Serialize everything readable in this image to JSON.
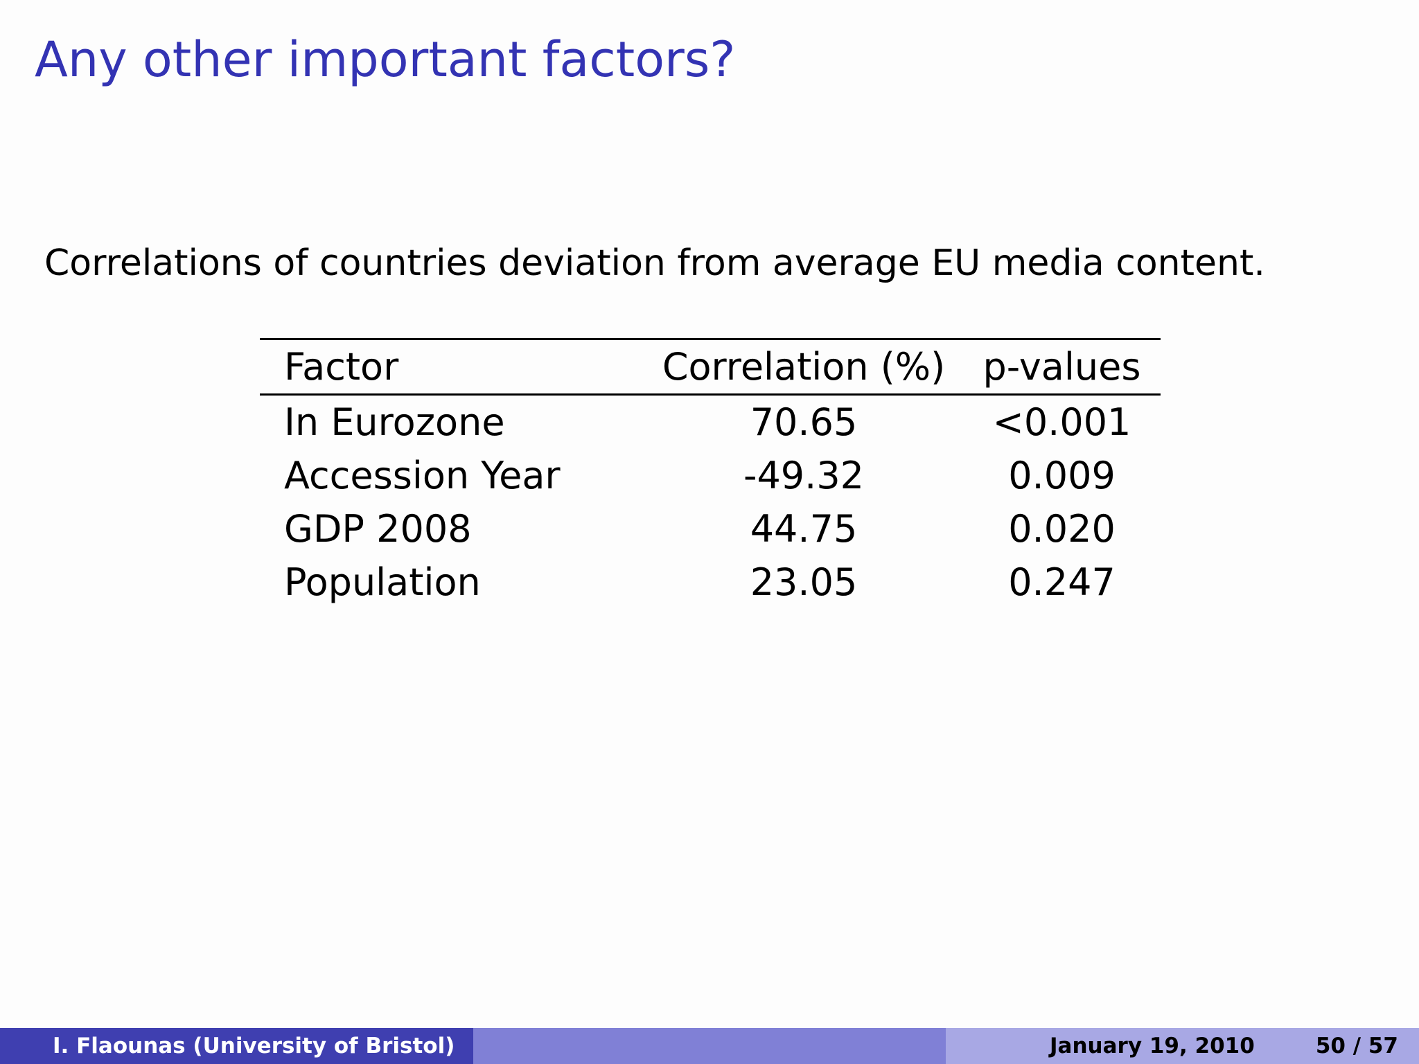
{
  "slide": {
    "title": "Any other important factors?",
    "subtitle": "Correlations of countries deviation from average EU media content."
  },
  "table": {
    "headers": [
      "Factor",
      "Correlation (%)",
      "p-values"
    ],
    "rows": [
      [
        "In Eurozone",
        "70.65",
        "<0.001"
      ],
      [
        "Accession Year",
        "-49.32",
        "0.009"
      ],
      [
        "GDP 2008",
        "44.75",
        "0.020"
      ],
      [
        "Population",
        "23.05",
        "0.247"
      ]
    ]
  },
  "footer": {
    "author": "I. Flaounas  (University of Bristol)",
    "date": "January 19, 2010",
    "page": "50 / 57"
  },
  "colors": {
    "title": "#3333b3",
    "footer_left": "#3f3fb0",
    "footer_mid": "#8080d6",
    "footer_right": "#a8a8e4"
  }
}
